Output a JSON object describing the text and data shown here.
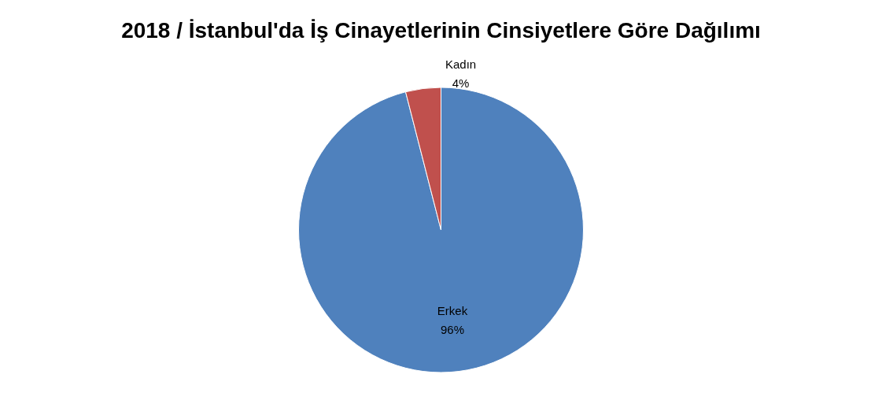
{
  "chart_data": {
    "type": "pie",
    "title": "2018 / İstanbul'da İş Cinayetlerinin Cinsiyetlere Göre Dağılımı",
    "categories": [
      "Erkek",
      "Kadın"
    ],
    "values": [
      96,
      4
    ],
    "colors": [
      "#4f81bd",
      "#c0504d"
    ],
    "value_labels": [
      "96%",
      "4%"
    ]
  }
}
